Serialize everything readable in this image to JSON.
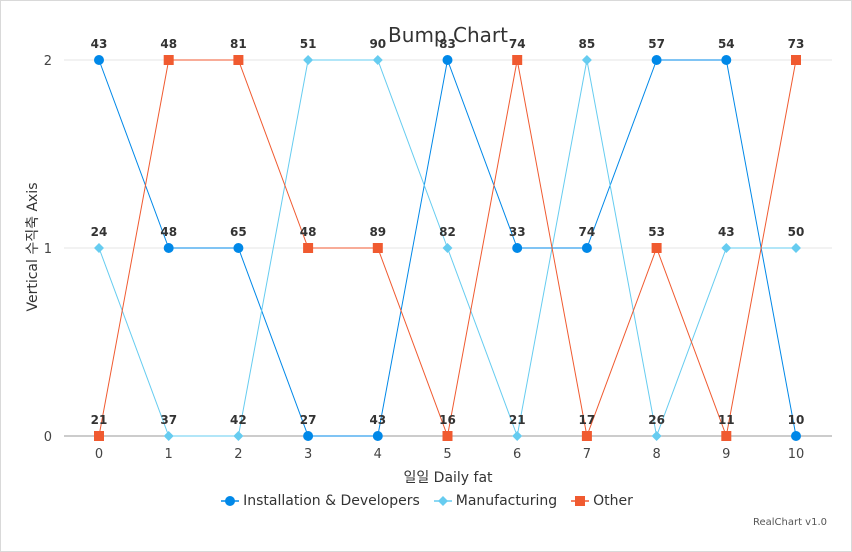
{
  "chart_data": {
    "type": "line",
    "title": "Bump Chart",
    "xlabel": "일일 Daily fat",
    "ylabel": "Vertical 수직축 Axis",
    "x": [
      0,
      1,
      2,
      3,
      4,
      5,
      6,
      7,
      8,
      9,
      10
    ],
    "ylim": [
      0,
      2
    ],
    "yticks": [
      0,
      1,
      2
    ],
    "grid": true,
    "legend_position": "bottom",
    "series": [
      {
        "name": "Installation & Developers",
        "color": "#0088e8",
        "marker": "circle",
        "rank": [
          2,
          1,
          1,
          0,
          0,
          2,
          1,
          1,
          2,
          2,
          0
        ],
        "labels": [
          43,
          48,
          65,
          27,
          43,
          83,
          33,
          74,
          57,
          54,
          10
        ]
      },
      {
        "name": "Manufacturing",
        "color": "#66ccf0",
        "marker": "diamond",
        "rank": [
          1,
          0,
          0,
          2,
          2,
          1,
          0,
          2,
          0,
          1,
          1
        ],
        "labels": [
          24,
          37,
          42,
          51,
          90,
          82,
          21,
          85,
          26,
          43,
          50
        ]
      },
      {
        "name": "Other",
        "color": "#f05a30",
        "marker": "square",
        "rank": [
          0,
          2,
          2,
          1,
          1,
          0,
          2,
          0,
          1,
          0,
          2
        ],
        "labels": [
          21,
          48,
          81,
          48,
          89,
          16,
          74,
          17,
          53,
          11,
          73
        ]
      }
    ]
  },
  "credit": "RealChart v1.0"
}
